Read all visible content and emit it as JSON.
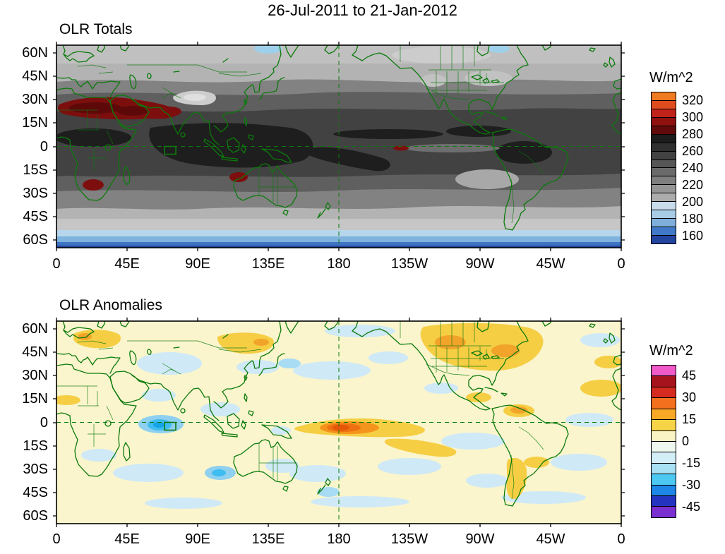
{
  "title": "26-Jul-2011 to 21-Jan-2012",
  "panels": [
    {
      "subtitle": "OLR Totals",
      "lat_labels": [
        "60N",
        "45N",
        "30N",
        "15N",
        "0",
        "15S",
        "30S",
        "45S",
        "60S"
      ],
      "lon_labels": [
        "0",
        "45E",
        "90E",
        "135E",
        "180",
        "135W",
        "90W",
        "45W",
        "0"
      ],
      "colorbar": {
        "units": "W/m^2",
        "tick_labels": [
          "320",
          "300",
          "280",
          "260",
          "240",
          "220",
          "200",
          "180",
          "160"
        ],
        "colors_top_to_bottom": [
          "#ee7a22",
          "#df4d1e",
          "#c1221a",
          "#8e100f",
          "#600a0b",
          "#1c1c1c",
          "#2f2f2f",
          "#424242",
          "#565656",
          "#6a6a6a",
          "#7f7f7f",
          "#959595",
          "#acacac",
          "#c9dcec",
          "#a8cbe6",
          "#7fb0dc",
          "#4079c8",
          "#23459e"
        ]
      }
    },
    {
      "subtitle": "OLR Anomalies",
      "lat_labels": [
        "60N",
        "45N",
        "30N",
        "15N",
        "0",
        "15S",
        "30S",
        "45S",
        "60S"
      ],
      "lon_labels": [
        "0",
        "45E",
        "90E",
        "135E",
        "180",
        "135W",
        "90W",
        "45W",
        "0"
      ],
      "colorbar": {
        "units": "W/m^2",
        "tick_labels": [
          "45",
          "30",
          "15",
          "0",
          "-15",
          "-30",
          "-45"
        ],
        "colors_top_to_bottom": [
          "#f05ac8",
          "#a6131c",
          "#d42a20",
          "#f2701e",
          "#f9a825",
          "#f7d348",
          "#faf3c4",
          "#eef8ee",
          "#d4eef8",
          "#a8e0f4",
          "#4cc8f2",
          "#1e86e6",
          "#2433c0",
          "#7a2fd0"
        ]
      }
    }
  ],
  "chart_data": [
    {
      "type": "heatmap",
      "title": "OLR Totals",
      "units": "W/m^2",
      "date_range": "26-Jul-2011 to 21-Jan-2012",
      "projection": "cylindrical equidistant, 0E eastward to 0E",
      "lat_ticks": [
        "60N",
        "45N",
        "30N",
        "15N",
        "0",
        "15S",
        "30S",
        "45S",
        "60S"
      ],
      "lon_ticks": [
        "0",
        "45E",
        "90E",
        "135E",
        "180",
        "135W",
        "90W",
        "45W",
        "0"
      ],
      "colorbar_tick_values": [
        320,
        300,
        280,
        260,
        240,
        220,
        200,
        180,
        160
      ],
      "approx_contour_interval": 10,
      "overlays": [
        "green coastlines and country/state borders",
        "dashed line at 180 longitude",
        "dashed line at equator",
        "small green box near 70-77E on equator"
      ],
      "notable_features": [
        {
          "region": "Sahara, Arabian Peninsula, NW India",
          "approx_value": "290-330 (OLR maximum, dark red)"
        },
        {
          "region": "Kalahari (southern Africa) and NW Australia spots",
          "approx_value": "290-300"
        },
        {
          "region": "Tropical belt, Indo-Pacific warm pool, Amazon, Congo",
          "approx_value": "250-280 (dark gray)"
        },
        {
          "region": "Tibetan Plateau",
          "approx_value": "200-220 (light gray)"
        },
        {
          "region": "Equatorial east Pacific cold tongue",
          "approx_value": "~240 (lighter gray band)"
        },
        {
          "region": "Southern Ocean 55-65S",
          "approx_value": "160-200 (blues)"
        }
      ]
    },
    {
      "type": "heatmap",
      "title": "OLR Anomalies",
      "units": "W/m^2",
      "date_range": "26-Jul-2011 to 21-Jan-2012",
      "lat_ticks": [
        "60N",
        "45N",
        "30N",
        "15N",
        "0",
        "15S",
        "30S",
        "45S",
        "60S"
      ],
      "lon_ticks": [
        "0",
        "45E",
        "90E",
        "135E",
        "180",
        "135W",
        "90W",
        "45W",
        "0"
      ],
      "colorbar_tick_values": [
        45,
        30,
        15,
        0,
        -15,
        -30,
        -45
      ],
      "approx_contour_interval": 7.5,
      "overlays": [
        "green coastlines and country/state borders",
        "dashed line at 180 longitude",
        "dashed line at equator",
        "small green box near 70-77E on equator"
      ],
      "notable_features": [
        {
          "region": "Equatorial west-central Indian Ocean (~55-75E)",
          "approx_value": "-25 to -40 (cyan/blue, enhanced convection)"
        },
        {
          "region": "Equatorial Pacific near the Date Line (~165E-165W)",
          "approx_value": "+25 to +45 (orange core, suppressed convection)"
        },
        {
          "region": "Gold band extending SE toward 130W, 25S",
          "approx_value": "+15 to +25"
        },
        {
          "region": "North America (US and Canada)",
          "approx_value": "+15 to +30 (gold with orange cores)"
        },
        {
          "region": "Europe / western Russia and NE Asia",
          "approx_value": "+10 to +25"
        },
        {
          "region": "Ocean SW of Australia",
          "approx_value": "-15 to -30"
        },
        {
          "region": "Most remaining areas",
          "approx_value": "-10 to +10 (pale yellow / pale blue)"
        }
      ]
    }
  ]
}
